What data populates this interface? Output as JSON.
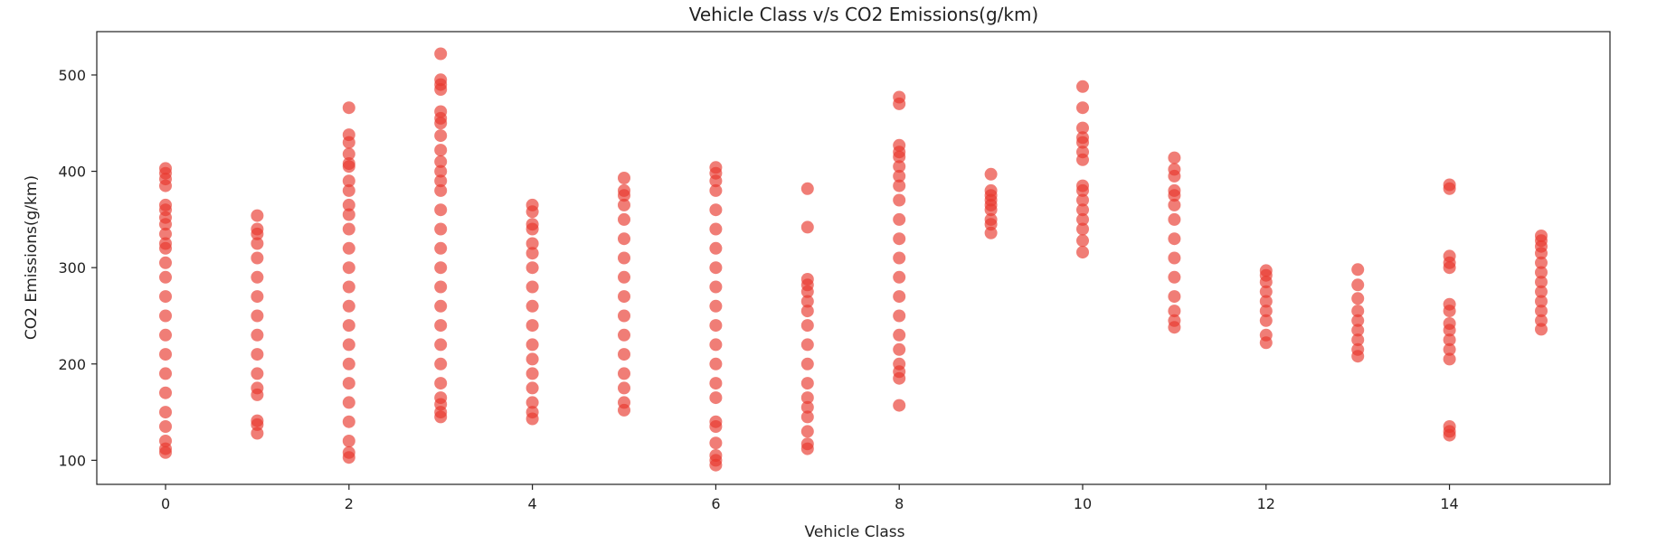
{
  "chart_data": {
    "type": "scatter",
    "title": "Vehicle Class v/s CO2 Emissions(g/km)",
    "xlabel": "Vehicle Class",
    "ylabel": "CO2 Emissions(g/km)",
    "xlim": [
      -0.75,
      15.75
    ],
    "ylim": [
      75,
      545
    ],
    "xticks": [
      0,
      2,
      4,
      6,
      8,
      10,
      12,
      14
    ],
    "yticks": [
      100,
      200,
      300,
      400,
      500
    ],
    "grid": false,
    "legend": "none",
    "marker_color": "#e8372c",
    "marker_opacity": 0.65,
    "points": [
      [
        0,
        108
      ],
      [
        0,
        112
      ],
      [
        0,
        120
      ],
      [
        0,
        135
      ],
      [
        0,
        150
      ],
      [
        0,
        170
      ],
      [
        0,
        190
      ],
      [
        0,
        210
      ],
      [
        0,
        230
      ],
      [
        0,
        250
      ],
      [
        0,
        270
      ],
      [
        0,
        290
      ],
      [
        0,
        305
      ],
      [
        0,
        320
      ],
      [
        0,
        325
      ],
      [
        0,
        335
      ],
      [
        0,
        345
      ],
      [
        0,
        352
      ],
      [
        0,
        360
      ],
      [
        0,
        365
      ],
      [
        0,
        385
      ],
      [
        0,
        392
      ],
      [
        0,
        398
      ],
      [
        0,
        403
      ],
      [
        1,
        128
      ],
      [
        1,
        137
      ],
      [
        1,
        141
      ],
      [
        1,
        168
      ],
      [
        1,
        175
      ],
      [
        1,
        190
      ],
      [
        1,
        210
      ],
      [
        1,
        230
      ],
      [
        1,
        250
      ],
      [
        1,
        270
      ],
      [
        1,
        290
      ],
      [
        1,
        310
      ],
      [
        1,
        325
      ],
      [
        1,
        335
      ],
      [
        1,
        340
      ],
      [
        1,
        354
      ],
      [
        2,
        103
      ],
      [
        2,
        108
      ],
      [
        2,
        120
      ],
      [
        2,
        140
      ],
      [
        2,
        160
      ],
      [
        2,
        180
      ],
      [
        2,
        200
      ],
      [
        2,
        220
      ],
      [
        2,
        240
      ],
      [
        2,
        260
      ],
      [
        2,
        280
      ],
      [
        2,
        300
      ],
      [
        2,
        320
      ],
      [
        2,
        340
      ],
      [
        2,
        355
      ],
      [
        2,
        365
      ],
      [
        2,
        380
      ],
      [
        2,
        390
      ],
      [
        2,
        405
      ],
      [
        2,
        408
      ],
      [
        2,
        418
      ],
      [
        2,
        430
      ],
      [
        2,
        438
      ],
      [
        2,
        466
      ],
      [
        3,
        145
      ],
      [
        3,
        150
      ],
      [
        3,
        158
      ],
      [
        3,
        165
      ],
      [
        3,
        180
      ],
      [
        3,
        200
      ],
      [
        3,
        220
      ],
      [
        3,
        240
      ],
      [
        3,
        260
      ],
      [
        3,
        280
      ],
      [
        3,
        300
      ],
      [
        3,
        320
      ],
      [
        3,
        340
      ],
      [
        3,
        360
      ],
      [
        3,
        380
      ],
      [
        3,
        390
      ],
      [
        3,
        400
      ],
      [
        3,
        410
      ],
      [
        3,
        422
      ],
      [
        3,
        437
      ],
      [
        3,
        450
      ],
      [
        3,
        455
      ],
      [
        3,
        462
      ],
      [
        3,
        485
      ],
      [
        3,
        490
      ],
      [
        3,
        495
      ],
      [
        3,
        522
      ],
      [
        4,
        143
      ],
      [
        4,
        150
      ],
      [
        4,
        160
      ],
      [
        4,
        175
      ],
      [
        4,
        190
      ],
      [
        4,
        205
      ],
      [
        4,
        220
      ],
      [
        4,
        240
      ],
      [
        4,
        260
      ],
      [
        4,
        280
      ],
      [
        4,
        300
      ],
      [
        4,
        315
      ],
      [
        4,
        325
      ],
      [
        4,
        340
      ],
      [
        4,
        345
      ],
      [
        4,
        358
      ],
      [
        4,
        365
      ],
      [
        5,
        152
      ],
      [
        5,
        160
      ],
      [
        5,
        175
      ],
      [
        5,
        190
      ],
      [
        5,
        210
      ],
      [
        5,
        230
      ],
      [
        5,
        250
      ],
      [
        5,
        270
      ],
      [
        5,
        290
      ],
      [
        5,
        310
      ],
      [
        5,
        330
      ],
      [
        5,
        350
      ],
      [
        5,
        365
      ],
      [
        5,
        375
      ],
      [
        5,
        380
      ],
      [
        5,
        393
      ],
      [
        6,
        95
      ],
      [
        6,
        100
      ],
      [
        6,
        105
      ],
      [
        6,
        118
      ],
      [
        6,
        135
      ],
      [
        6,
        140
      ],
      [
        6,
        165
      ],
      [
        6,
        180
      ],
      [
        6,
        200
      ],
      [
        6,
        220
      ],
      [
        6,
        240
      ],
      [
        6,
        260
      ],
      [
        6,
        280
      ],
      [
        6,
        300
      ],
      [
        6,
        320
      ],
      [
        6,
        340
      ],
      [
        6,
        360
      ],
      [
        6,
        380
      ],
      [
        6,
        390
      ],
      [
        6,
        398
      ],
      [
        6,
        404
      ],
      [
        7,
        112
      ],
      [
        7,
        117
      ],
      [
        7,
        130
      ],
      [
        7,
        145
      ],
      [
        7,
        155
      ],
      [
        7,
        165
      ],
      [
        7,
        180
      ],
      [
        7,
        200
      ],
      [
        7,
        220
      ],
      [
        7,
        240
      ],
      [
        7,
        255
      ],
      [
        7,
        265
      ],
      [
        7,
        275
      ],
      [
        7,
        282
      ],
      [
        7,
        288
      ],
      [
        7,
        342
      ],
      [
        7,
        382
      ],
      [
        8,
        157
      ],
      [
        8,
        185
      ],
      [
        8,
        192
      ],
      [
        8,
        200
      ],
      [
        8,
        215
      ],
      [
        8,
        230
      ],
      [
        8,
        250
      ],
      [
        8,
        270
      ],
      [
        8,
        290
      ],
      [
        8,
        310
      ],
      [
        8,
        330
      ],
      [
        8,
        350
      ],
      [
        8,
        370
      ],
      [
        8,
        385
      ],
      [
        8,
        395
      ],
      [
        8,
        405
      ],
      [
        8,
        415
      ],
      [
        8,
        420
      ],
      [
        8,
        427
      ],
      [
        8,
        470
      ],
      [
        8,
        477
      ],
      [
        9,
        336
      ],
      [
        9,
        345
      ],
      [
        9,
        350
      ],
      [
        9,
        360
      ],
      [
        9,
        365
      ],
      [
        9,
        370
      ],
      [
        9,
        375
      ],
      [
        9,
        380
      ],
      [
        9,
        397
      ],
      [
        10,
        316
      ],
      [
        10,
        328
      ],
      [
        10,
        340
      ],
      [
        10,
        350
      ],
      [
        10,
        360
      ],
      [
        10,
        370
      ],
      [
        10,
        380
      ],
      [
        10,
        385
      ],
      [
        10,
        412
      ],
      [
        10,
        420
      ],
      [
        10,
        430
      ],
      [
        10,
        435
      ],
      [
        10,
        445
      ],
      [
        10,
        466
      ],
      [
        10,
        488
      ],
      [
        11,
        238
      ],
      [
        11,
        245
      ],
      [
        11,
        255
      ],
      [
        11,
        270
      ],
      [
        11,
        290
      ],
      [
        11,
        310
      ],
      [
        11,
        330
      ],
      [
        11,
        350
      ],
      [
        11,
        365
      ],
      [
        11,
        375
      ],
      [
        11,
        380
      ],
      [
        11,
        395
      ],
      [
        11,
        402
      ],
      [
        11,
        414
      ],
      [
        12,
        222
      ],
      [
        12,
        230
      ],
      [
        12,
        245
      ],
      [
        12,
        255
      ],
      [
        12,
        265
      ],
      [
        12,
        275
      ],
      [
        12,
        285
      ],
      [
        12,
        292
      ],
      [
        12,
        297
      ],
      [
        13,
        208
      ],
      [
        13,
        215
      ],
      [
        13,
        225
      ],
      [
        13,
        235
      ],
      [
        13,
        245
      ],
      [
        13,
        255
      ],
      [
        13,
        268
      ],
      [
        13,
        282
      ],
      [
        13,
        298
      ],
      [
        14,
        126
      ],
      [
        14,
        130
      ],
      [
        14,
        135
      ],
      [
        14,
        205
      ],
      [
        14,
        215
      ],
      [
        14,
        225
      ],
      [
        14,
        235
      ],
      [
        14,
        242
      ],
      [
        14,
        255
      ],
      [
        14,
        262
      ],
      [
        14,
        300
      ],
      [
        14,
        305
      ],
      [
        14,
        312
      ],
      [
        14,
        382
      ],
      [
        14,
        386
      ],
      [
        15,
        236
      ],
      [
        15,
        245
      ],
      [
        15,
        255
      ],
      [
        15,
        265
      ],
      [
        15,
        275
      ],
      [
        15,
        285
      ],
      [
        15,
        295
      ],
      [
        15,
        305
      ],
      [
        15,
        315
      ],
      [
        15,
        322
      ],
      [
        15,
        328
      ],
      [
        15,
        333
      ]
    ]
  }
}
